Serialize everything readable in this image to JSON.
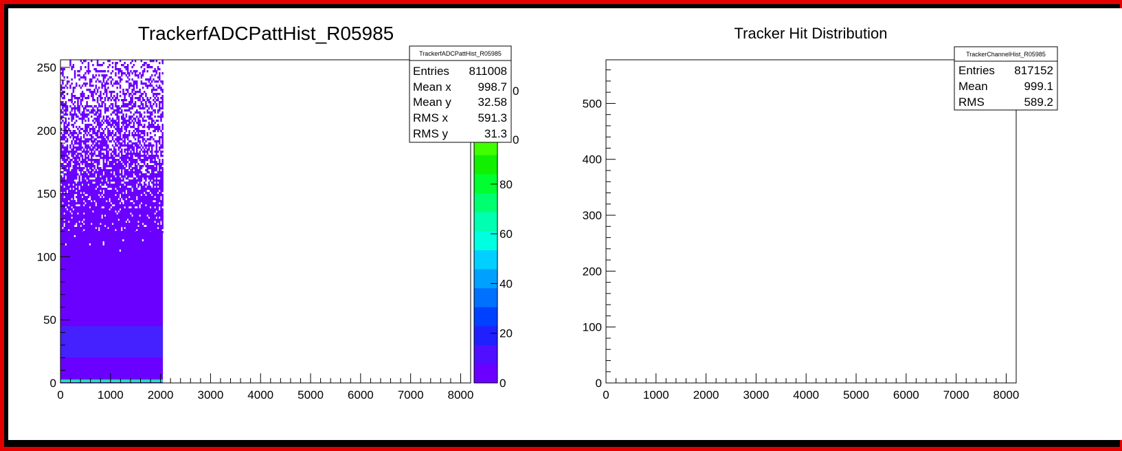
{
  "colors": {
    "frame": "#e50000",
    "background": "#ffffff",
    "fill": "#6a00ff"
  },
  "chart_data": [
    {
      "type": "heatmap",
      "title": "TrackerfADCPattHist_R05985",
      "xlim": [
        0,
        8200
      ],
      "ylim": [
        0,
        256
      ],
      "x_tick_labels": [
        "0",
        "1000",
        "2000",
        "3000",
        "4000",
        "5000",
        "6000",
        "7000",
        "8000"
      ],
      "x_tick_values": [
        0,
        1000,
        2000,
        3000,
        4000,
        5000,
        6000,
        7000,
        8000
      ],
      "y_tick_labels": [
        "0",
        "50",
        "100",
        "150",
        "200",
        "250"
      ],
      "y_tick_values": [
        0,
        50,
        100,
        150,
        200,
        250
      ],
      "data_region": {
        "x": [
          0,
          2048
        ],
        "y": [
          0,
          256
        ]
      },
      "dense_band_y": [
        20,
        45
      ],
      "solid_fill_top_y": 120,
      "colorbar": {
        "range": [
          0,
          130
        ],
        "tick_labels": [
          "0",
          "20",
          "40",
          "60",
          "80"
        ],
        "tick_values": [
          0,
          20,
          40,
          60,
          80
        ],
        "clipped_labels": [
          "0",
          "0"
        ],
        "colors": [
          "#6a00ff",
          "#5010ff",
          "#2020ff",
          "#0040ff",
          "#0070ff",
          "#00a0ff",
          "#00d0ff",
          "#00ffe0",
          "#00ffb0",
          "#00ff70",
          "#00ff30",
          "#10f000",
          "#40ff00",
          "#70ff00",
          "#a0ff00",
          "#d0ff00",
          "#ffff00"
        ]
      },
      "stats": {
        "name": "TrackerfADCPattHist_R05985",
        "rows": [
          {
            "label": "Entries",
            "value": "811008"
          },
          {
            "label": "Mean x",
            "value": "998.7"
          },
          {
            "label": "Mean y",
            "value": "32.58"
          },
          {
            "label": "RMS x",
            "value": "591.3"
          },
          {
            "label": "RMS y",
            "value": "31.3"
          }
        ]
      }
    },
    {
      "type": "bar",
      "title": "Tracker Hit Distribution",
      "xlim": [
        0,
        8200
      ],
      "ylim": [
        0,
        578
      ],
      "x_tick_labels": [
        "0",
        "1000",
        "2000",
        "3000",
        "4000",
        "5000",
        "6000",
        "7000",
        "8000"
      ],
      "x_tick_values": [
        0,
        1000,
        2000,
        3000,
        4000,
        5000,
        6000,
        7000,
        8000
      ],
      "y_tick_labels": [
        "0",
        "100",
        "200",
        "300",
        "400",
        "500"
      ],
      "y_tick_values": [
        0,
        100,
        200,
        300,
        400,
        500
      ],
      "values": [],
      "stats": {
        "name": "TrackerChannelHist_R05985",
        "rows": [
          {
            "label": "Entries",
            "value": "817152"
          },
          {
            "label": "Mean",
            "value": "999.1"
          },
          {
            "label": "RMS",
            "value": "589.2"
          }
        ]
      }
    }
  ]
}
